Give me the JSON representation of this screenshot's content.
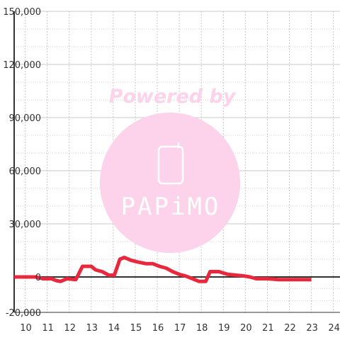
{
  "chart_data": {
    "type": "line",
    "title": "",
    "xlabel": "",
    "ylabel": "",
    "xlim": [
      9.5,
      24.3
    ],
    "ylim": [
      -20000,
      150000
    ],
    "x_ticks": [
      10,
      11,
      12,
      13,
      14,
      15,
      16,
      17,
      18,
      19,
      20,
      21,
      22,
      23,
      24
    ],
    "x_tick_labels": [
      "10",
      "11",
      "12",
      "13",
      "14",
      "15",
      "16",
      "17",
      "18",
      "19",
      "20",
      "21",
      "22",
      "23",
      "24"
    ],
    "y_ticks": [
      -20000,
      0,
      30000,
      60000,
      90000,
      120000,
      150000
    ],
    "y_tick_labels": [
      "-20,000",
      "0",
      "30,000",
      "60,000",
      "90,000",
      "120,000",
      "150,000"
    ],
    "grid": true,
    "series": [
      {
        "color": "#e8283c",
        "x": [
          9.5,
          10.5,
          10.8,
          11.2,
          11.4,
          11.6,
          11.9,
          12.3,
          12.6,
          13.0,
          13.2,
          13.5,
          13.8,
          14.05,
          14.3,
          14.5,
          14.8,
          15.1,
          15.5,
          15.8,
          16.1,
          16.4,
          16.7,
          17.0,
          17.3,
          17.6,
          17.9,
          18.2,
          18.4,
          18.8,
          19.2,
          19.6,
          20.0,
          20.2,
          20.5,
          21.0,
          21.5,
          22.0,
          22.5,
          23.0
        ],
        "y": [
          0,
          0,
          -1000,
          -1000,
          -2000,
          -2500,
          -1000,
          -1500,
          6000,
          6000,
          4000,
          3000,
          1000,
          1000,
          10000,
          11000,
          9500,
          8500,
          7500,
          7500,
          6000,
          5000,
          3000,
          1500,
          500,
          -1000,
          -2500,
          -2500,
          3000,
          3000,
          1500,
          1000,
          500,
          0,
          -1000,
          -1000,
          -1500,
          -1500,
          -1500,
          -1500
        ]
      }
    ]
  },
  "watermark": {
    "powered_by": "Powered by",
    "brand": "PAPiMO"
  }
}
